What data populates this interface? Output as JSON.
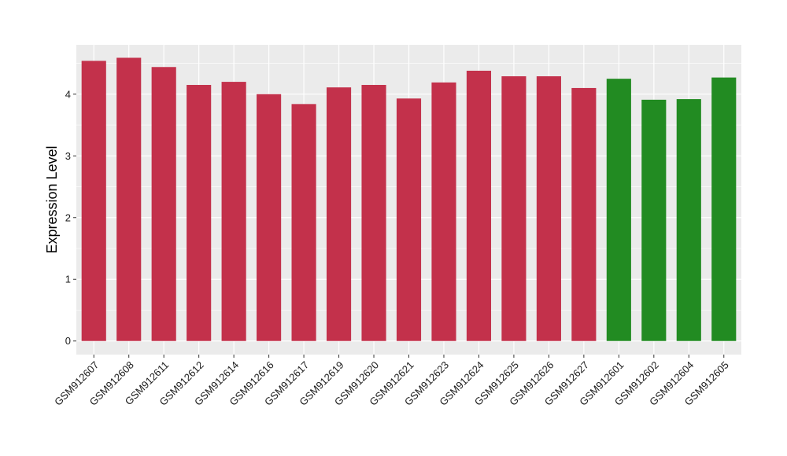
{
  "chart_data": {
    "type": "bar",
    "title": "",
    "xlabel": "",
    "ylabel": "Expression Level",
    "ylim": [
      -0.22,
      4.8
    ],
    "yticks": [
      0,
      1,
      2,
      3,
      4
    ],
    "grid": true,
    "panel_background": "#EBEBEB",
    "categories": [
      "GSM912607",
      "GSM912608",
      "GSM912611",
      "GSM912612",
      "GSM912614",
      "GSM912616",
      "GSM912617",
      "GSM912619",
      "GSM912620",
      "GSM912621",
      "GSM912623",
      "GSM912624",
      "GSM912625",
      "GSM912626",
      "GSM912627",
      "GSM912601",
      "GSM912602",
      "GSM912604",
      "GSM912605"
    ],
    "values": [
      4.54,
      4.59,
      4.44,
      4.15,
      4.2,
      4.0,
      3.84,
      4.11,
      4.15,
      3.93,
      4.19,
      4.38,
      4.29,
      4.29,
      4.1,
      4.25,
      3.91,
      3.92,
      4.27
    ],
    "bar_colors": [
      "#C3314B",
      "#C3314B",
      "#C3314B",
      "#C3314B",
      "#C3314B",
      "#C3314B",
      "#C3314B",
      "#C3314B",
      "#C3314B",
      "#C3314B",
      "#C3314B",
      "#C3314B",
      "#C3314B",
      "#C3314B",
      "#C3314B",
      "#228B22",
      "#228B22",
      "#228B22",
      "#228B22"
    ]
  }
}
